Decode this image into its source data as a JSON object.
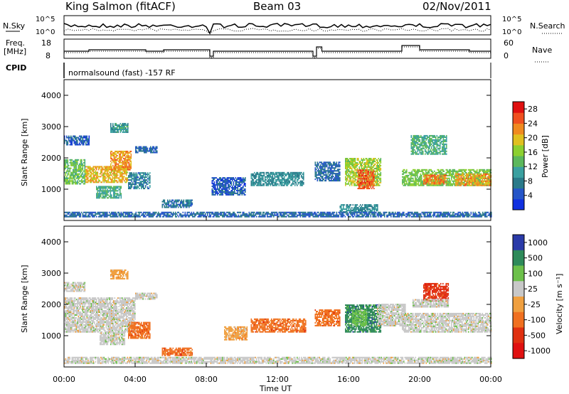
{
  "header": {
    "station": "King Salmon (fitACF)",
    "beam": "Beam 03",
    "date": "02/Nov/2011"
  },
  "noise_panel": {
    "left_label": "N.Sky",
    "right_label": "N.Search",
    "y_ticks_left": [
      "10^5",
      "10^0"
    ],
    "y_ticks_right": [
      "10^5",
      "10^0"
    ]
  },
  "freq_panel": {
    "left_label_1": "Freq.",
    "left_label_2": "[MHz]",
    "left_ticks": [
      "18",
      "8"
    ],
    "right_label": "Nave",
    "right_ticks": [
      "60",
      "0"
    ]
  },
  "cpid": {
    "label": "CPID",
    "program": "normalsound (fast) -157 RF"
  },
  "colors": {
    "power_scale": [
      "#1030e0",
      "#2555c8",
      "#2a7a8a",
      "#3aa0a0",
      "#5cb85c",
      "#8cd030",
      "#e0c020",
      "#f08a20",
      "#f05020",
      "#e01010"
    ],
    "velocity_scale": [
      "#2a3aa8",
      "#2e8a5a",
      "#6cc04a",
      "#c8c8c8",
      "#f0a040",
      "#f07020",
      "#e03010",
      "#e01010"
    ],
    "ground_scatter": "#c8c8c8",
    "frame": "#000000"
  },
  "chart_data": [
    {
      "type": "heatmap",
      "title": "Power",
      "x_axis": "Time UT",
      "y_axis": "Slant Range [km]",
      "x_range_hours": [
        0,
        24
      ],
      "y_range_km": [
        0,
        4500
      ],
      "y_ticks": [
        "1000",
        "2000",
        "3000",
        "4000"
      ],
      "colorbar_label": "Power [dB]",
      "colorbar_ticks": [
        "4",
        "8",
        "12",
        "16",
        "20",
        "24",
        "28"
      ],
      "colorbar_range": [
        0,
        30
      ],
      "regions": [
        {
          "t0": 0.0,
          "t1": 1.2,
          "r0": 1150,
          "r1": 1950,
          "v": 14
        },
        {
          "t0": 0.0,
          "t1": 1.4,
          "r0": 2400,
          "r1": 2700,
          "v": 5
        },
        {
          "t0": 1.2,
          "t1": 3.6,
          "r0": 1200,
          "r1": 1700,
          "v": 20
        },
        {
          "t0": 2.6,
          "t1": 3.8,
          "r0": 1600,
          "r1": 2200,
          "v": 22
        },
        {
          "t0": 1.8,
          "t1": 3.2,
          "r0": 700,
          "r1": 1100,
          "v": 12
        },
        {
          "t0": 3.6,
          "t1": 4.8,
          "r0": 1000,
          "r1": 1500,
          "v": 8
        },
        {
          "t0": 2.6,
          "t1": 3.6,
          "r0": 2800,
          "r1": 3100,
          "v": 10
        },
        {
          "t0": 4.0,
          "t1": 5.2,
          "r0": 2150,
          "r1": 2350,
          "v": 6
        },
        {
          "t0": 5.5,
          "t1": 7.2,
          "r0": 400,
          "r1": 650,
          "v": 7
        },
        {
          "t0": 8.3,
          "t1": 10.2,
          "r0": 800,
          "r1": 1350,
          "v": 5
        },
        {
          "t0": 10.5,
          "t1": 13.5,
          "r0": 1100,
          "r1": 1550,
          "v": 9
        },
        {
          "t0": 14.1,
          "t1": 15.5,
          "r0": 1250,
          "r1": 1850,
          "v": 6
        },
        {
          "t0": 15.8,
          "t1": 17.8,
          "r0": 1100,
          "r1": 2000,
          "v": 17
        },
        {
          "t0": 16.5,
          "t1": 17.4,
          "r0": 1000,
          "r1": 1600,
          "v": 25
        },
        {
          "t0": 15.5,
          "t1": 17.6,
          "r0": 250,
          "r1": 500,
          "v": 9
        },
        {
          "t0": 19.0,
          "t1": 24.0,
          "r0": 1100,
          "r1": 1600,
          "v": 15
        },
        {
          "t0": 20.2,
          "t1": 21.5,
          "r0": 1150,
          "r1": 1450,
          "v": 23
        },
        {
          "t0": 19.5,
          "t1": 21.5,
          "r0": 2100,
          "r1": 2700,
          "v": 12
        },
        {
          "t0": 22.0,
          "t1": 24.0,
          "r0": 1100,
          "r1": 1500,
          "v": 22
        },
        {
          "t0": 0.0,
          "t1": 24.0,
          "r0": 100,
          "r1": 250,
          "v": 6
        }
      ]
    },
    {
      "type": "heatmap",
      "title": "Velocity",
      "x_axis": "Time UT",
      "y_axis": "Slant Range [km]",
      "x_range_hours": [
        0,
        24
      ],
      "y_range_km": [
        0,
        4500
      ],
      "x_ticks": [
        "00:00",
        "04:00",
        "08:00",
        "12:00",
        "16:00",
        "20:00",
        "00:00"
      ],
      "y_ticks": [
        "1000",
        "2000",
        "3000",
        "4000"
      ],
      "colorbar_label": "Velocity [m s⁻¹]",
      "colorbar_ticks": [
        "1000",
        "500",
        "100",
        "25",
        "-25",
        "-100",
        "-500",
        "-1000"
      ],
      "regions": [
        {
          "t0": 0.0,
          "t1": 4.0,
          "r0": 1100,
          "r1": 2200,
          "c": 3
        },
        {
          "t0": 0.0,
          "t1": 1.2,
          "r0": 2400,
          "r1": 2700,
          "c": 3
        },
        {
          "t0": 2.0,
          "t1": 3.4,
          "r0": 700,
          "r1": 1100,
          "c": 3
        },
        {
          "t0": 2.6,
          "t1": 3.6,
          "r0": 2800,
          "r1": 3100,
          "c": 4
        },
        {
          "t0": 3.6,
          "t1": 4.8,
          "r0": 900,
          "r1": 1400,
          "c": 5
        },
        {
          "t0": 4.0,
          "t1": 5.2,
          "r0": 2150,
          "r1": 2350,
          "c": 3
        },
        {
          "t0": 5.5,
          "t1": 7.2,
          "r0": 350,
          "r1": 600,
          "c": 5
        },
        {
          "t0": 9.0,
          "t1": 10.3,
          "r0": 850,
          "r1": 1300,
          "c": 4
        },
        {
          "t0": 10.5,
          "t1": 13.6,
          "r0": 1100,
          "r1": 1550,
          "c": 5
        },
        {
          "t0": 14.1,
          "t1": 15.5,
          "r0": 1300,
          "r1": 1800,
          "c": 5
        },
        {
          "t0": 15.8,
          "t1": 17.8,
          "r0": 1100,
          "r1": 2000,
          "c": 1
        },
        {
          "t0": 16.2,
          "t1": 17.0,
          "r0": 1300,
          "r1": 1800,
          "c": 2
        },
        {
          "t0": 17.6,
          "t1": 19.2,
          "r0": 1300,
          "r1": 2000,
          "c": 3
        },
        {
          "t0": 19.0,
          "t1": 24.0,
          "r0": 1100,
          "r1": 1700,
          "c": 3
        },
        {
          "t0": 20.2,
          "t1": 21.6,
          "r0": 2100,
          "r1": 2650,
          "c": 6
        },
        {
          "t0": 19.6,
          "t1": 21.6,
          "r0": 1900,
          "r1": 2150,
          "c": 3
        },
        {
          "t0": 0.0,
          "t1": 24.0,
          "r0": 100,
          "r1": 300,
          "c": 3
        }
      ]
    }
  ]
}
